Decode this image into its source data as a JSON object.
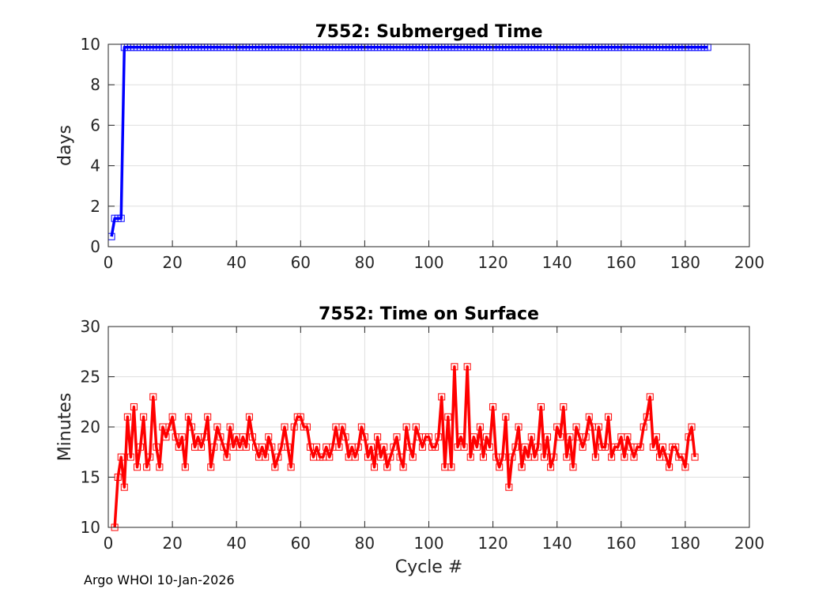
{
  "footer": "Argo WHOI 10-Jan-2026",
  "chart_data": [
    {
      "type": "line",
      "title": "7552: Submerged Time",
      "xlabel": "",
      "ylabel": "days",
      "xlim": [
        0,
        200
      ],
      "ylim": [
        0,
        10
      ],
      "xticks": [
        0,
        20,
        40,
        60,
        80,
        100,
        120,
        140,
        160,
        180,
        200
      ],
      "yticks": [
        0,
        2,
        4,
        6,
        8,
        10
      ],
      "grid": true,
      "color": "#0000ff",
      "marker": "square",
      "series": [
        {
          "x": [
            1,
            2,
            3,
            4,
            5,
            6
          ],
          "y": [
            0.5,
            1.4,
            1.4,
            1.4,
            9.85,
            9.85
          ],
          "constant_after": {
            "from_cycle": 6,
            "to_cycle": 187,
            "value": 9.85
          }
        }
      ]
    },
    {
      "type": "line",
      "title": "7552: Time on Surface",
      "xlabel": "Cycle #",
      "ylabel": "Minutes",
      "xlim": [
        0,
        200
      ],
      "ylim": [
        10,
        30
      ],
      "xticks": [
        0,
        20,
        40,
        60,
        80,
        100,
        120,
        140,
        160,
        180,
        200
      ],
      "yticks": [
        10,
        15,
        20,
        25,
        30
      ],
      "grid": true,
      "color": "#ff0000",
      "marker": "square",
      "series": [
        {
          "x_start": 2,
          "y": [
            10,
            15,
            17,
            14,
            21,
            17,
            22,
            16,
            18,
            21,
            16,
            17,
            23,
            18,
            16,
            20,
            19,
            20,
            21,
            19,
            18,
            19,
            16,
            21,
            20,
            18,
            19,
            18,
            19,
            21,
            16,
            18,
            20,
            19,
            18,
            17,
            20,
            18,
            19,
            18,
            19,
            18,
            21,
            19,
            18,
            17,
            18,
            17,
            19,
            18,
            16,
            17,
            18,
            20,
            18,
            16,
            20,
            21,
            21,
            20,
            20,
            18,
            17,
            18,
            17,
            17,
            18,
            17,
            18,
            20,
            18,
            20,
            19,
            17,
            18,
            17,
            18,
            20,
            19,
            17,
            18,
            16,
            19,
            17,
            18,
            16,
            17,
            18,
            19,
            17,
            16,
            20,
            18,
            17,
            20,
            19,
            18,
            19,
            19,
            18,
            18,
            19,
            23,
            16,
            21,
            16,
            26,
            18,
            19,
            18,
            26,
            17,
            19,
            18,
            20,
            17,
            19,
            18,
            22,
            17,
            16,
            17,
            21,
            14,
            17,
            18,
            20,
            16,
            18,
            17,
            19,
            17,
            18,
            22,
            17,
            19,
            16,
            17,
            20,
            19,
            22,
            17,
            19,
            16,
            20,
            19,
            18,
            19,
            21,
            20,
            17,
            20,
            18,
            18,
            21,
            17,
            18,
            18,
            19,
            17,
            19,
            18,
            17,
            18,
            18,
            20,
            21,
            23,
            18,
            19,
            17,
            18,
            17,
            16,
            18,
            18,
            17,
            17,
            16,
            19,
            20,
            17
          ]
        }
      ]
    }
  ]
}
